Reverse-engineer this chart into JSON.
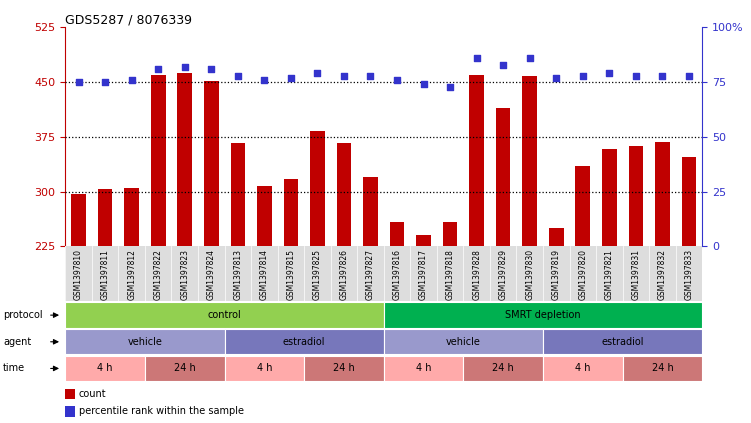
{
  "title": "GDS5287 / 8076339",
  "samples": [
    "GSM1397810",
    "GSM1397811",
    "GSM1397812",
    "GSM1397822",
    "GSM1397823",
    "GSM1397824",
    "GSM1397813",
    "GSM1397814",
    "GSM1397815",
    "GSM1397825",
    "GSM1397826",
    "GSM1397827",
    "GSM1397816",
    "GSM1397817",
    "GSM1397818",
    "GSM1397828",
    "GSM1397829",
    "GSM1397830",
    "GSM1397819",
    "GSM1397820",
    "GSM1397821",
    "GSM1397831",
    "GSM1397832",
    "GSM1397833"
  ],
  "bar_values": [
    297,
    303,
    305,
    460,
    463,
    452,
    367,
    307,
    317,
    383,
    367,
    320,
    258,
    240,
    258,
    460,
    415,
    458,
    250,
    335,
    358,
    362,
    368,
    348
  ],
  "dot_values": [
    75,
    75,
    76,
    81,
    82,
    81,
    78,
    76,
    77,
    79,
    78,
    78,
    76,
    74,
    73,
    86,
    83,
    86,
    77,
    78,
    79,
    78,
    78,
    78
  ],
  "ylim_left": [
    225,
    525
  ],
  "ylim_right": [
    0,
    100
  ],
  "yticks_left": [
    225,
    300,
    375,
    450,
    525
  ],
  "yticks_right": [
    0,
    25,
    50,
    75,
    100
  ],
  "bar_color": "#C00000",
  "dot_color": "#3333CC",
  "bg_color": "#FFFFFF",
  "gridline_color": "#000000",
  "protocol_groups": [
    {
      "label": "control",
      "start": 0,
      "end": 12,
      "color": "#92D050"
    },
    {
      "label": "SMRT depletion",
      "start": 12,
      "end": 24,
      "color": "#00B050"
    }
  ],
  "agent_groups": [
    {
      "label": "vehicle",
      "start": 0,
      "end": 6,
      "color": "#9999CC"
    },
    {
      "label": "estradiol",
      "start": 6,
      "end": 12,
      "color": "#7777BB"
    },
    {
      "label": "vehicle",
      "start": 12,
      "end": 18,
      "color": "#9999CC"
    },
    {
      "label": "estradiol",
      "start": 18,
      "end": 24,
      "color": "#7777BB"
    }
  ],
  "time_groups": [
    {
      "label": "4 h",
      "start": 0,
      "end": 3,
      "color": "#FFAAAA"
    },
    {
      "label": "24 h",
      "start": 3,
      "end": 6,
      "color": "#CC7777"
    },
    {
      "label": "4 h",
      "start": 6,
      "end": 9,
      "color": "#FFAAAA"
    },
    {
      "label": "24 h",
      "start": 9,
      "end": 12,
      "color": "#CC7777"
    },
    {
      "label": "4 h",
      "start": 12,
      "end": 15,
      "color": "#FFAAAA"
    },
    {
      "label": "24 h",
      "start": 15,
      "end": 18,
      "color": "#CC7777"
    },
    {
      "label": "4 h",
      "start": 18,
      "end": 21,
      "color": "#FFAAAA"
    },
    {
      "label": "24 h",
      "start": 21,
      "end": 24,
      "color": "#CC7777"
    }
  ],
  "row_labels": [
    "protocol",
    "agent",
    "time"
  ],
  "legend_items": [
    {
      "label": "count",
      "color": "#C00000",
      "marker": "s"
    },
    {
      "label": "percentile rank within the sample",
      "color": "#3333CC",
      "marker": "s"
    }
  ]
}
